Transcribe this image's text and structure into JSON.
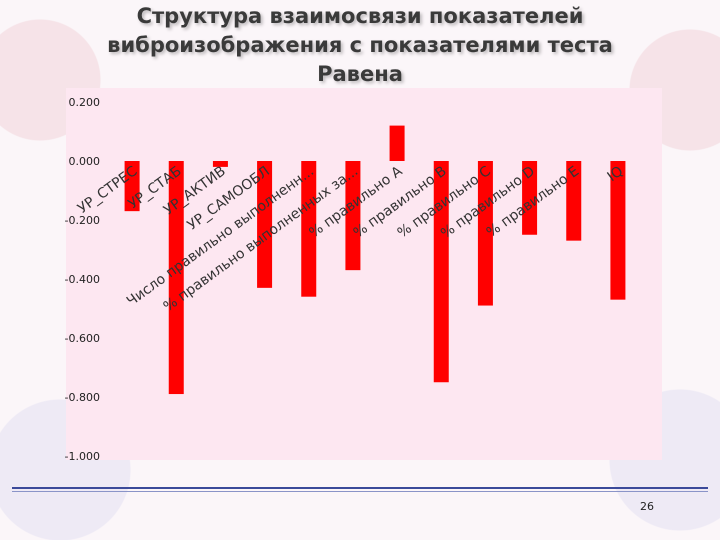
{
  "title_lines": [
    "Структура взаимосвязи показателей",
    "виброизображения с  показателями теста",
    "Равена"
  ],
  "page_number": "26",
  "chart_data": {
    "type": "bar",
    "categories": [
      "УР_СТРЕС",
      "УР_СТАБ",
      "УР_АКТИВ",
      "УР_САМООБЛ",
      "Число правильно выполненн...",
      "% правильно выполненных за...",
      "% правильно А",
      "% правильно В",
      "% правильно С",
      "% правильно D",
      "% правильно Е",
      "IQ"
    ],
    "values": [
      -0.17,
      -0.79,
      -0.02,
      -0.43,
      -0.46,
      -0.37,
      0.12,
      -0.75,
      -0.49,
      -0.25,
      -0.27,
      -0.47
    ],
    "ylim": [
      -1.0,
      0.2
    ],
    "yticks": [
      "0.200",
      "0.000",
      "-0.200",
      "-0.400",
      "-0.600",
      "-0.800",
      "-1.000"
    ],
    "grid": false,
    "colors": {
      "bar": "#ff0000",
      "plot_bg": "#fde7f1"
    }
  }
}
